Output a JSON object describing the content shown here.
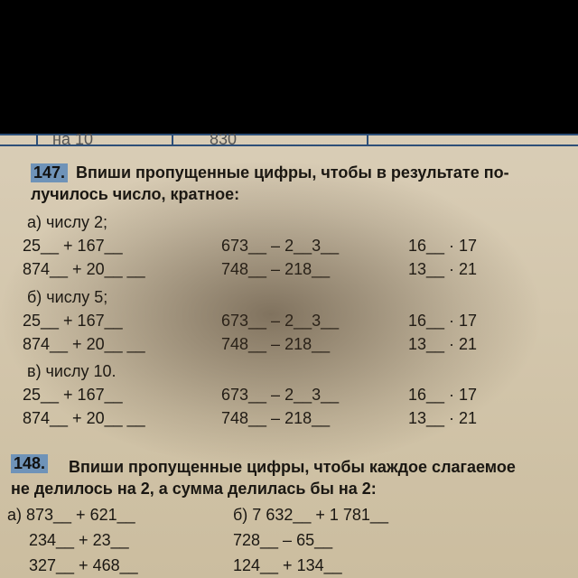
{
  "table_fragment": [
    "на 10",
    "830"
  ],
  "exercises": [
    {
      "number": "147.",
      "lines": [
        "Впиши пропущенные цифры, чтобы в результате по-",
        "лучилось число, кратное:"
      ],
      "groups": [
        {
          "label": "а) числу 2;",
          "rows": [
            [
              "25__ + 167__",
              "673__ – 2__3__",
              "16__ · 17"
            ],
            [
              "874__ + 20__ __",
              "748__ – 218__",
              "13__ · 21"
            ]
          ]
        },
        {
          "label": "б) числу 5;",
          "rows": [
            [
              "25__ + 167__",
              "673__ – 2__3__",
              "16__ · 17"
            ],
            [
              "874__ + 20__ __",
              "748__ – 218__",
              "13__ · 21"
            ]
          ]
        },
        {
          "label": "в) числу 10.",
          "rows": [
            [
              "25__ + 167__",
              "673__ – 2__3__",
              "16__ · 17"
            ],
            [
              "874__ + 20__ __",
              "748__ – 218__",
              "13__ · 21"
            ]
          ]
        }
      ]
    },
    {
      "number": "148.",
      "lines": [
        "Впиши пропущенные цифры, чтобы каждое слагаемое",
        "не делилось на 2, а сумма делилась бы на 2:"
      ],
      "rows": [
        [
          "а) 873__ + 621__",
          "б) 7 632__ + 1 781__"
        ],
        [
          "234__ + 23__",
          "728__ – 65__"
        ],
        [
          "327__ + 468__",
          "124__ + 134__"
        ]
      ]
    }
  ]
}
